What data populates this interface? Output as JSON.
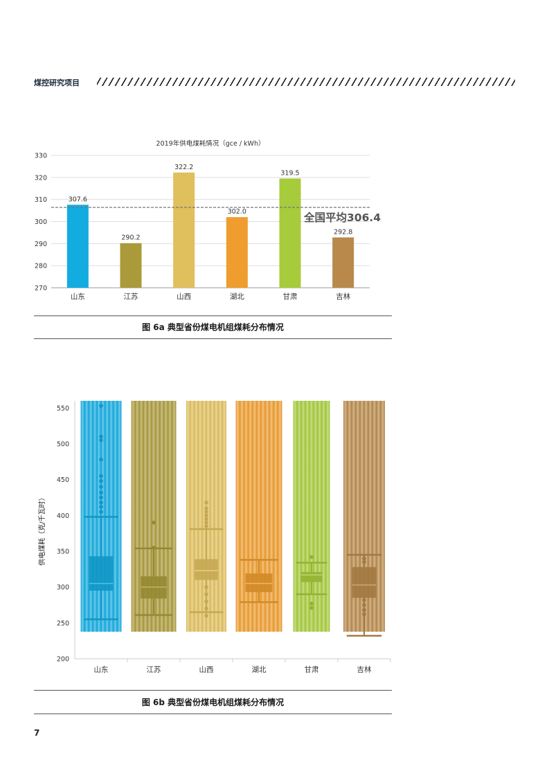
{
  "header": {
    "title": "煤控研究项目"
  },
  "page_number": "7",
  "chart_data": [
    {
      "type": "bar",
      "title": "2019年供电煤耗情况（gce / kWh）",
      "categories": [
        "山东",
        "江苏",
        "山西",
        "湖北",
        "甘肃",
        "吉林"
      ],
      "values": [
        307.6,
        290.2,
        322.2,
        302.0,
        319.5,
        292.8
      ],
      "value_labels": [
        "307.6",
        "290.2",
        "322.2",
        "302.0",
        "319.5",
        "292.8"
      ],
      "colors": [
        "#13ace0",
        "#aa9a3a",
        "#e0bf5d",
        "#ee9d2e",
        "#a6cb3b",
        "#b8894a"
      ],
      "ylim": [
        270,
        330
      ],
      "yticks": [
        270,
        280,
        290,
        300,
        310,
        320,
        330
      ],
      "grid": true,
      "reference_line": {
        "value": 306.4,
        "label": "全国平均306.4"
      },
      "caption": "图 6a 典型省份煤电机组煤耗分布情况"
    },
    {
      "type": "box",
      "title": "",
      "ylabel": "供电煤耗（克/千瓦时）",
      "categories": [
        "山东",
        "江苏",
        "山西",
        "湖北",
        "甘肃",
        "吉林"
      ],
      "colors": [
        "#13ace0",
        "#aa9a3a",
        "#e0bf5d",
        "#ee9d2e",
        "#a6cb3b",
        "#b8894a"
      ],
      "ylim": [
        200,
        560
      ],
      "yticks": [
        200,
        250,
        300,
        350,
        400,
        450,
        500,
        550
      ],
      "boxes": [
        {
          "min": 255,
          "q1": 295,
          "median": 305,
          "q3": 343,
          "max": 398,
          "outliers": [
            405,
            412,
            418,
            425,
            432,
            440,
            448,
            455,
            478,
            505,
            510,
            553
          ]
        },
        {
          "min": 261,
          "q1": 284,
          "median": 300,
          "q3": 315,
          "max": 354,
          "outliers": [
            355,
            390
          ]
        },
        {
          "min": 265,
          "q1": 310,
          "median": 323,
          "q3": 339,
          "max": 381,
          "outliers": [
            260,
            270,
            280,
            290,
            300,
            385,
            390,
            395,
            400,
            405,
            410,
            418
          ]
        },
        {
          "min": 279,
          "q1": 293,
          "median": 305,
          "q3": 319,
          "max": 338,
          "outliers": []
        },
        {
          "min": 290,
          "q1": 307,
          "median": 317,
          "q3": 321,
          "max": 334,
          "outliers": [
            271,
            277,
            342
          ]
        },
        {
          "min": 232,
          "q1": 285,
          "median": 303,
          "q3": 328,
          "max": 345,
          "outliers": [
            262,
            268,
            275,
            282,
            335,
            340
          ]
        }
      ],
      "caption": "图 6b 典型省份煤电机组煤耗分布情况"
    }
  ]
}
